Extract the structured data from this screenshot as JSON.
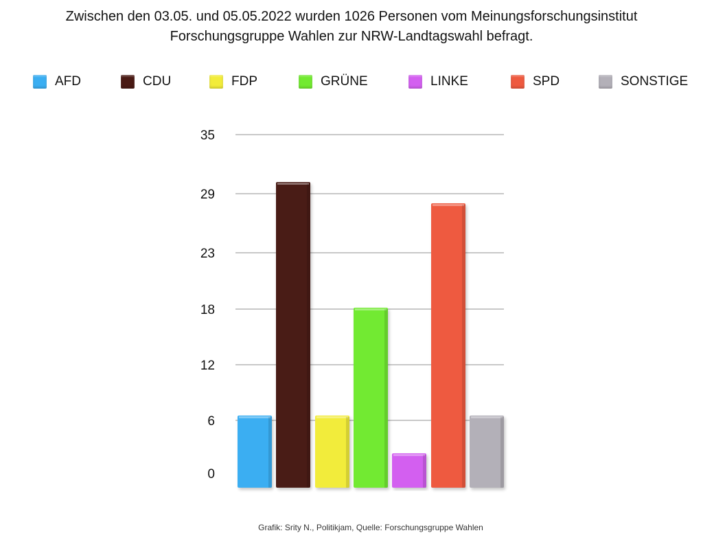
{
  "header": {
    "title_line1": "Zwischen den 03.05. und 05.05.2022 wurden 1026 Personen vom Meinungsforschungsinstitut",
    "title_line2": "Forschungsgruppe Wahlen zur NRW-Landtagswahl befragt."
  },
  "footer": {
    "credit": "Grafik: Srity N., Politikjam, Quelle: Forschungsgruppe Wahlen"
  },
  "colors": {
    "AFD": "#3aaef2",
    "CDU": "#4a1a14",
    "FDP": "#f2ec3a",
    "GRÜNE": "#72ea30",
    "LINKE": "#d35ff0",
    "SPD": "#ee5a3f",
    "SONSTIGE": "#b3b0b8",
    "grid": "#c8c8c8"
  },
  "chart_data": {
    "type": "bar",
    "categories": [
      "AFD",
      "CDU",
      "FDP",
      "GRÜNE",
      "LINKE",
      "SPD",
      "SONSTIGE"
    ],
    "values": [
      7,
      32,
      7,
      19,
      3,
      30,
      7
    ],
    "yticks": [
      "0",
      "6",
      "12",
      "18",
      "23",
      "29",
      "35"
    ],
    "ylim": [
      0,
      37
    ],
    "grid": true,
    "legend_position": "top"
  }
}
